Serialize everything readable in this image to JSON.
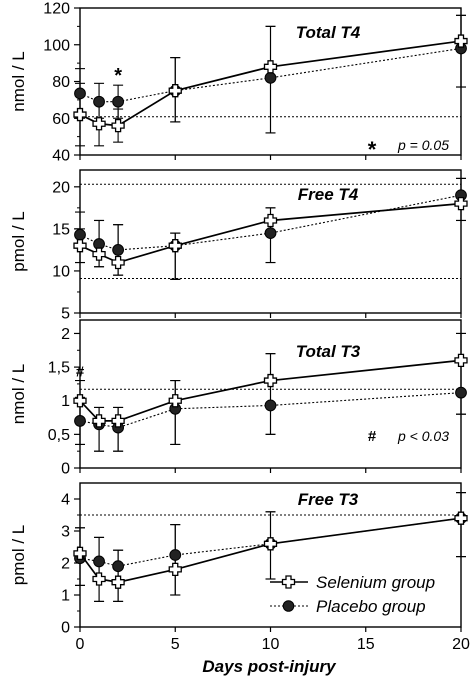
{
  "figure": {
    "xlabel": "Days post-injury",
    "x_ticks": [
      0,
      5,
      10,
      15,
      20
    ],
    "legend": {
      "placement": "bottom-right",
      "selenium_label": "Selenium group",
      "placebo_label": "Placebo group"
    }
  },
  "chart_data": [
    {
      "type": "line",
      "title": "Total T4",
      "ylabel": "nmol / L",
      "ylim": [
        40,
        120
      ],
      "xlim": [
        0,
        20
      ],
      "y_ticks": [
        40,
        60,
        80,
        100,
        120
      ],
      "y_tick_labels": [
        "40",
        "60",
        "80",
        "100",
        "120"
      ],
      "reference_lines": [
        60.8
      ],
      "x": [
        0,
        1,
        2,
        5,
        10,
        20
      ],
      "series": [
        {
          "name": "Selenium group",
          "marker": "open-cross",
          "line": "solid",
          "values": [
            62,
            57,
            56,
            75,
            88,
            102
          ],
          "err_low": [
            45,
            45,
            47,
            58,
            52,
            77
          ],
          "err_high": [
            79,
            69,
            65,
            93,
            110,
            116
          ]
        },
        {
          "name": "Placebo group",
          "marker": "filled-circle",
          "line": "dotted",
          "values": [
            73.5,
            69,
            69,
            75,
            82,
            98
          ],
          "err_low": [
            60,
            60,
            60,
            58,
            52,
            77
          ],
          "err_high": [
            87,
            79,
            78,
            93,
            110,
            116
          ]
        }
      ],
      "annotations": [
        {
          "text": "*",
          "x": 2,
          "y": 83,
          "kind": "marker"
        },
        {
          "text": "* ",
          "kind": "footnote-symbol"
        },
        {
          "text": "p = 0.05",
          "kind": "footnote"
        }
      ]
    },
    {
      "type": "line",
      "title": "Free T4",
      "ylabel": "pmol / L",
      "ylim": [
        5,
        22
      ],
      "xlim": [
        0,
        20
      ],
      "y_ticks": [
        5,
        10,
        15,
        20
      ],
      "y_tick_labels": [
        "5",
        "10",
        "15",
        "20"
      ],
      "reference_lines": [
        20.3,
        9.1
      ],
      "x": [
        0,
        1,
        2,
        5,
        10,
        20
      ],
      "series": [
        {
          "name": "Selenium group",
          "marker": "open-cross",
          "line": "solid",
          "values": [
            13,
            12,
            11,
            13,
            16,
            18
          ],
          "err_low": [
            11,
            10.5,
            9.5,
            9,
            11,
            16
          ],
          "err_high": [
            15,
            16,
            15.5,
            14.5,
            17.5,
            21
          ]
        },
        {
          "name": "Placebo group",
          "marker": "filled-circle",
          "line": "dotted",
          "values": [
            14.3,
            13.2,
            12.5,
            13,
            14.5,
            19
          ],
          "err_low": [
            11,
            10.5,
            9.5,
            9,
            11,
            16
          ],
          "err_high": [
            17,
            16,
            15.5,
            14.5,
            17.5,
            21
          ]
        }
      ],
      "annotations": []
    },
    {
      "type": "line",
      "title": "Total T3",
      "ylabel": "nmol / L",
      "ylim": [
        0,
        2.2
      ],
      "xlim": [
        0,
        20
      ],
      "y_ticks": [
        0,
        0.5,
        1,
        1.5,
        2
      ],
      "y_tick_labels": [
        "0",
        "0,5",
        "1",
        "1,5",
        "2"
      ],
      "reference_lines": [
        1.17
      ],
      "x": [
        0,
        1,
        2,
        5,
        10,
        20
      ],
      "series": [
        {
          "name": "Selenium group",
          "marker": "open-cross",
          "line": "solid",
          "values": [
            1.0,
            0.7,
            0.7,
            1.0,
            1.3,
            1.6
          ],
          "err_low": [
            0.35,
            0.25,
            0.25,
            0.35,
            0.5,
            0.8
          ],
          "err_high": [
            1.3,
            0.9,
            0.9,
            1.3,
            1.7,
            2.0
          ]
        },
        {
          "name": "Placebo group",
          "marker": "filled-circle",
          "line": "dotted",
          "values": [
            0.7,
            0.65,
            0.6,
            0.88,
            0.93,
            1.12
          ],
          "err_low": [
            0.35,
            0.25,
            0.25,
            0.35,
            0.5,
            0.8
          ],
          "err_high": [
            1.05,
            0.9,
            0.9,
            1.3,
            1.7,
            2.0
          ]
        }
      ],
      "annotations": [
        {
          "text": "#",
          "x": 0,
          "y": 1.45,
          "kind": "marker"
        },
        {
          "text": "#",
          "kind": "footnote-symbol"
        },
        {
          "text": "p < 0.03",
          "kind": "footnote"
        }
      ]
    },
    {
      "type": "line",
      "title": "Free T3",
      "ylabel": "pmol / L",
      "ylim": [
        0,
        4.5
      ],
      "xlim": [
        0,
        20
      ],
      "y_ticks": [
        0,
        1,
        2,
        3,
        4
      ],
      "y_tick_labels": [
        "0",
        "1",
        "2",
        "3",
        "4"
      ],
      "reference_lines": [
        3.5
      ],
      "x": [
        0,
        1,
        2,
        5,
        10,
        20
      ],
      "series": [
        {
          "name": "Selenium group",
          "marker": "open-cross",
          "line": "solid",
          "values": [
            2.3,
            1.5,
            1.4,
            1.8,
            2.6,
            3.4
          ],
          "err_low": [
            1.3,
            0.8,
            0.8,
            1.0,
            1.5,
            2.2
          ],
          "err_high": [
            3.1,
            2.8,
            2.4,
            3.2,
            3.6,
            4.2
          ]
        },
        {
          "name": "Placebo group",
          "marker": "filled-circle",
          "line": "dotted",
          "values": [
            2.15,
            2.05,
            1.9,
            2.25,
            2.6,
            3.4
          ],
          "err_low": [
            1.3,
            0.8,
            0.8,
            1.0,
            1.5,
            2.2
          ],
          "err_high": [
            3.1,
            2.8,
            2.4,
            3.2,
            3.6,
            4.2
          ]
        }
      ],
      "annotations": []
    }
  ]
}
